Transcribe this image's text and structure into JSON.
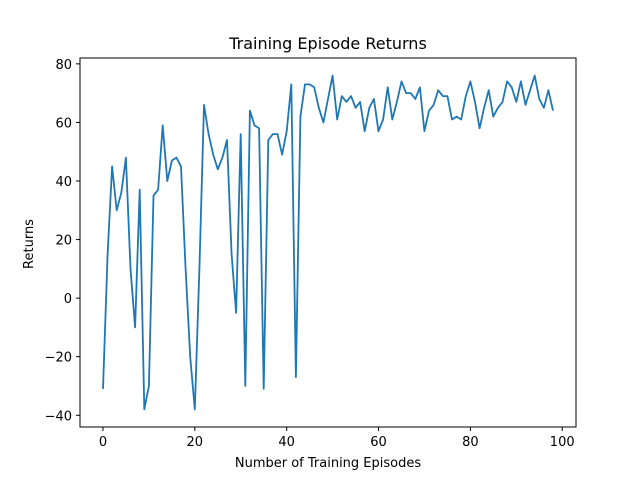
{
  "chart_data": {
    "type": "line",
    "title": "Training Episode Returns",
    "xlabel": "Number of Training Episodes",
    "ylabel": "Returns",
    "xlim": [
      -5,
      103
    ],
    "ylim": [
      -44,
      82
    ],
    "xticks": [
      0,
      20,
      40,
      60,
      80,
      100
    ],
    "yticks": [
      -40,
      -20,
      0,
      20,
      40,
      60,
      80
    ],
    "grid": false,
    "series": [
      {
        "color": "#1f77b4",
        "x": [
          0,
          1,
          2,
          3,
          4,
          5,
          6,
          7,
          8,
          9,
          10,
          11,
          12,
          13,
          14,
          15,
          16,
          17,
          18,
          19,
          20,
          21,
          22,
          23,
          24,
          25,
          26,
          27,
          28,
          29,
          30,
          31,
          32,
          33,
          34,
          35,
          36,
          37,
          38,
          39,
          40,
          41,
          42,
          43,
          44,
          45,
          46,
          47,
          48,
          49,
          50,
          51,
          52,
          53,
          54,
          55,
          56,
          57,
          58,
          59,
          60,
          61,
          62,
          63,
          64,
          65,
          66,
          67,
          68,
          69,
          70,
          71,
          72,
          73,
          74,
          75,
          76,
          77,
          78,
          79,
          80,
          81,
          82,
          83,
          84,
          85,
          86,
          87,
          88,
          89,
          90,
          91,
          92,
          93,
          94,
          95,
          96,
          97,
          98
        ],
        "y": [
          -31,
          15,
          45,
          30,
          36,
          48,
          10,
          -10,
          37,
          -38,
          -30,
          35,
          37,
          59,
          40,
          47,
          48,
          45,
          10,
          -20,
          -38,
          10,
          66,
          56,
          49,
          44,
          48,
          54,
          15,
          -5,
          56,
          -30,
          64,
          59,
          58,
          -31,
          54,
          56,
          56,
          49,
          57,
          73,
          -27,
          62,
          73,
          73,
          72,
          65,
          60,
          68,
          76,
          61,
          69,
          67,
          69,
          65,
          67,
          57,
          65,
          68,
          57,
          61,
          72,
          61,
          67,
          74,
          70,
          70,
          68,
          72,
          57,
          64,
          66,
          71,
          69,
          69,
          61,
          62,
          61,
          69,
          74,
          67,
          58,
          65,
          71,
          62,
          65,
          67,
          74,
          72,
          67,
          74,
          66,
          71,
          76,
          68,
          65,
          71,
          64
        ]
      }
    ]
  }
}
